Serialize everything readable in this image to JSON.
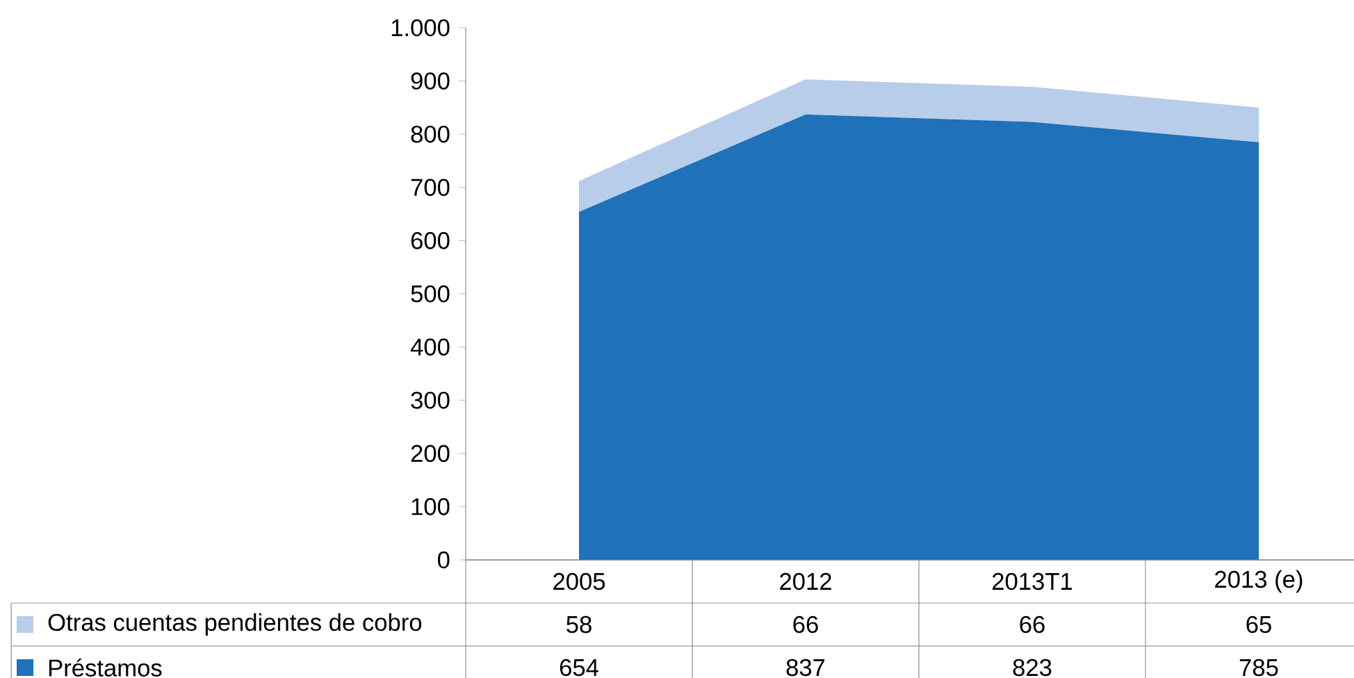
{
  "chart_data": {
    "type": "area",
    "stacked": true,
    "categories": [
      "2005",
      "2012",
      "2013T1",
      "2013 (e)"
    ],
    "series": [
      {
        "name": "Préstamos",
        "color": "#1f71b9",
        "values": [
          654,
          837,
          823,
          785
        ]
      },
      {
        "name": "Otras cuentas pendientes de cobro",
        "color": "#b7cdea",
        "values": [
          58,
          66,
          66,
          65
        ]
      }
    ],
    "ylim": [
      0,
      1000
    ],
    "yticks": [
      0,
      100,
      200,
      300,
      400,
      500,
      600,
      700,
      800,
      900,
      {
        "value": 1000,
        "label": "1.000"
      }
    ],
    "data_labels": true,
    "legend": "bottom left"
  }
}
